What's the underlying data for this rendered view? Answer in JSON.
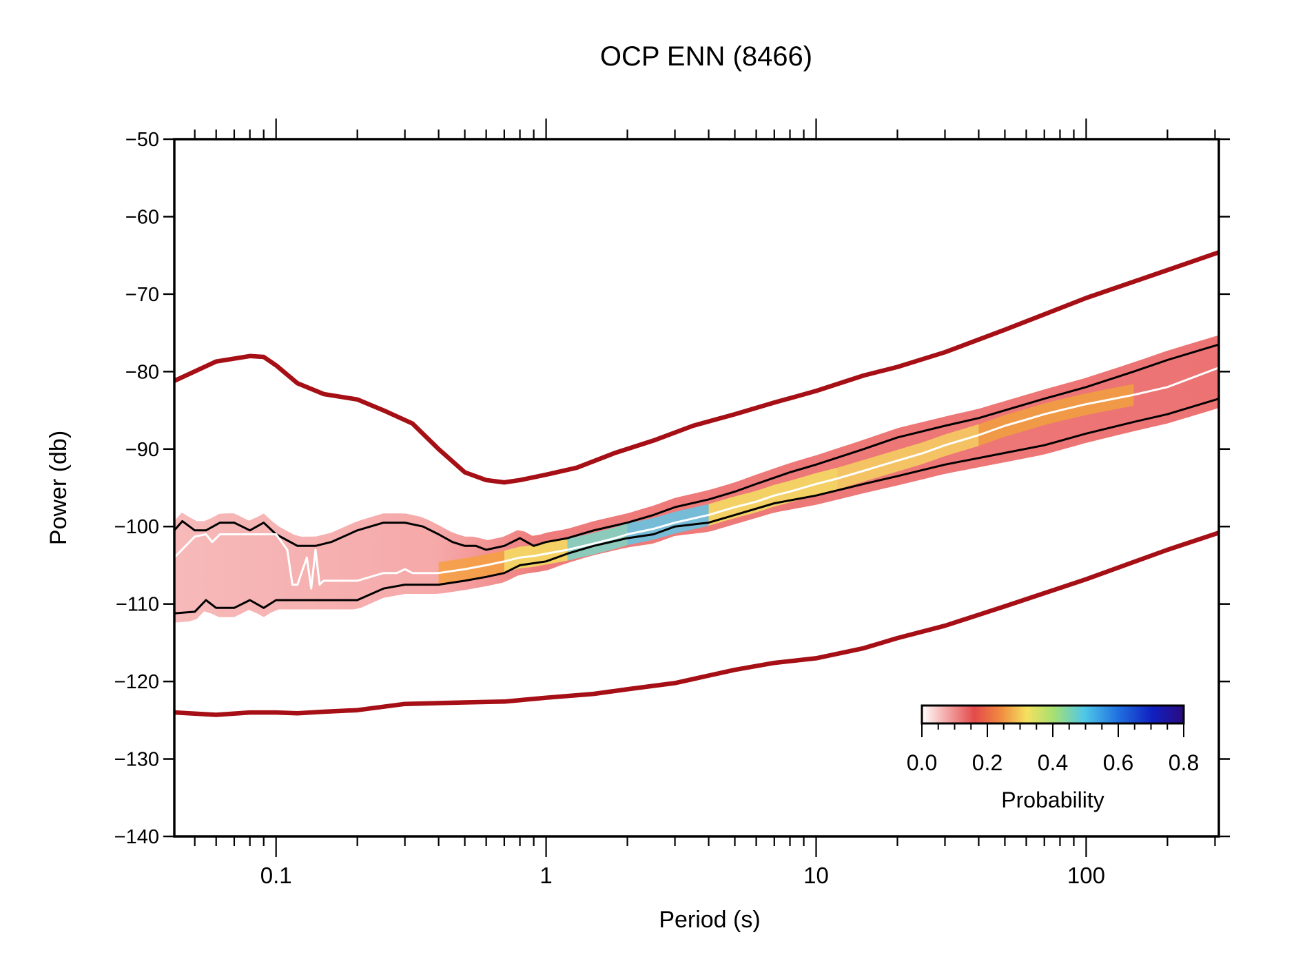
{
  "chart_data": {
    "type": "line",
    "title": "OCP ENN (8466)",
    "xlabel": "Period (s)",
    "ylabel": "Power (db)",
    "xscale": "log",
    "xlim": [
      0.042,
      310
    ],
    "ylim": [
      -140,
      -50
    ],
    "y_ticks": [
      -50,
      -60,
      -70,
      -80,
      -90,
      -100,
      -110,
      -120,
      -130,
      -140
    ],
    "y_tick_labels": [
      "−50",
      "−60",
      "−70",
      "−80",
      "−90",
      "−100",
      "−110",
      "−120",
      "−130",
      "−140"
    ],
    "x_ticks": [
      0.1,
      1,
      10,
      100
    ],
    "x_tick_labels": [
      "0.1",
      "1",
      "10",
      "100"
    ],
    "grid": false,
    "colorbar": {
      "label": "Probability",
      "range": [
        0,
        0.8
      ],
      "ticks": [
        0.0,
        0.2,
        0.4,
        0.6,
        0.8
      ],
      "tick_labels": [
        "0.0",
        "0.2",
        "0.4",
        "0.6",
        "0.8"
      ],
      "placement": "bottom-right",
      "colors": [
        "#ffffff",
        "#f4a0a0",
        "#e34a4a",
        "#f08a40",
        "#f5e060",
        "#a8e070",
        "#50c8e8",
        "#2070e0",
        "#1020c0",
        "#2a0a80"
      ]
    },
    "series": [
      {
        "role": "new-high-noise-model",
        "color": "#a50f15",
        "x": [
          0.042,
          0.06,
          0.08,
          0.09,
          0.1,
          0.12,
          0.15,
          0.2,
          0.25,
          0.32,
          0.4,
          0.5,
          0.6,
          0.7,
          0.8,
          1,
          1.3,
          1.8,
          2.5,
          3.5,
          5,
          7,
          10,
          15,
          20,
          30,
          50,
          100,
          200,
          310
        ],
        "y": [
          -81.2,
          -78.7,
          -78.0,
          -78.1,
          -79.2,
          -81.5,
          -82.9,
          -83.6,
          -85.0,
          -86.7,
          -90.0,
          -93.0,
          -94.0,
          -94.3,
          -94.0,
          -93.3,
          -92.4,
          -90.5,
          -88.9,
          -87.0,
          -85.5,
          -84.0,
          -82.5,
          -80.5,
          -79.4,
          -77.5,
          -74.6,
          -70.5,
          -66.9,
          -64.6
        ]
      },
      {
        "role": "new-low-noise-model",
        "color": "#a50f15",
        "x": [
          0.042,
          0.06,
          0.08,
          0.1,
          0.12,
          0.15,
          0.2,
          0.3,
          0.5,
          0.7,
          1,
          1.5,
          2,
          3,
          5,
          7,
          10,
          15,
          20,
          30,
          50,
          100,
          200,
          310
        ],
        "y": [
          -124.0,
          -124.3,
          -124.0,
          -124.0,
          -124.1,
          -123.9,
          -123.7,
          -122.9,
          -122.7,
          -122.6,
          -122.1,
          -121.6,
          -121.0,
          -120.2,
          -118.5,
          -117.6,
          -117.0,
          -115.7,
          -114.4,
          -112.8,
          -110.3,
          -106.8,
          -103.0,
          -100.8
        ]
      },
      {
        "role": "mode",
        "color": "#ffffff",
        "x": [
          0.042,
          0.05,
          0.055,
          0.058,
          0.062,
          0.07,
          0.08,
          0.1,
          0.11,
          0.115,
          0.12,
          0.13,
          0.135,
          0.14,
          0.145,
          0.15,
          0.16,
          0.2,
          0.25,
          0.28,
          0.3,
          0.32,
          0.35,
          0.4,
          0.5,
          0.6,
          0.7,
          0.8,
          0.9,
          1,
          1.2,
          1.5,
          1.8,
          2,
          2.5,
          3,
          4,
          5,
          6,
          7,
          8,
          10,
          12,
          15,
          20,
          25,
          30,
          40,
          50,
          60,
          70,
          80,
          100,
          150,
          200,
          310
        ],
        "y": [
          -104.0,
          -101.3,
          -101.0,
          -102.0,
          -101.0,
          -101.0,
          -101.0,
          -101.0,
          -103.0,
          -107.5,
          -107.5,
          -104.0,
          -108.0,
          -103.0,
          -107.5,
          -107.0,
          -107.0,
          -107.0,
          -106.0,
          -106.0,
          -105.5,
          -106.0,
          -106.0,
          -106.0,
          -105.5,
          -105.0,
          -104.5,
          -104.0,
          -103.8,
          -103.5,
          -103.0,
          -102.2,
          -101.5,
          -101.0,
          -100.3,
          -99.5,
          -98.5,
          -97.5,
          -96.8,
          -96.0,
          -95.5,
          -94.5,
          -93.8,
          -92.8,
          -91.5,
          -90.5,
          -89.5,
          -88.2,
          -87.0,
          -86.2,
          -85.5,
          -85.0,
          -84.2,
          -83.0,
          -82.0,
          -79.5
        ]
      },
      {
        "role": "upper-percentile",
        "color": "#000000",
        "x": [
          0.042,
          0.045,
          0.05,
          0.055,
          0.062,
          0.07,
          0.08,
          0.09,
          0.1,
          0.12,
          0.14,
          0.16,
          0.2,
          0.25,
          0.3,
          0.35,
          0.4,
          0.45,
          0.5,
          0.55,
          0.6,
          0.7,
          0.8,
          0.9,
          1,
          1.2,
          1.5,
          2,
          2.5,
          3,
          4,
          5,
          6,
          8,
          10,
          15,
          20,
          30,
          40,
          50,
          70,
          100,
          150,
          200,
          310
        ],
        "y": [
          -100.5,
          -99.3,
          -100.5,
          -100.5,
          -99.5,
          -99.5,
          -100.5,
          -99.5,
          -101.0,
          -102.5,
          -102.5,
          -102.0,
          -100.5,
          -99.5,
          -99.5,
          -100.0,
          -101.0,
          -102.0,
          -102.5,
          -102.5,
          -103.0,
          -102.5,
          -101.5,
          -102.5,
          -102.0,
          -101.5,
          -100.5,
          -99.5,
          -98.5,
          -97.5,
          -96.5,
          -95.5,
          -94.5,
          -93.0,
          -92.0,
          -90.0,
          -88.5,
          -87.0,
          -86.0,
          -85.0,
          -83.5,
          -82.0,
          -80.0,
          -78.5,
          -76.5
        ]
      },
      {
        "role": "lower-percentile",
        "color": "#000000",
        "x": [
          0.042,
          0.05,
          0.055,
          0.06,
          0.07,
          0.08,
          0.09,
          0.1,
          0.12,
          0.15,
          0.2,
          0.25,
          0.3,
          0.4,
          0.5,
          0.6,
          0.7,
          0.8,
          1,
          1.2,
          1.5,
          2,
          2.5,
          3,
          4,
          5,
          7,
          10,
          15,
          20,
          30,
          50,
          70,
          100,
          150,
          200,
          310
        ],
        "y": [
          -111.2,
          -111.0,
          -109.5,
          -110.5,
          -110.5,
          -109.5,
          -110.5,
          -109.5,
          -109.5,
          -109.5,
          -109.5,
          -108.0,
          -107.5,
          -107.5,
          -107.0,
          -106.5,
          -106.0,
          -105.0,
          -104.5,
          -103.5,
          -102.5,
          -101.5,
          -101.0,
          -100.0,
          -99.5,
          -98.5,
          -97.0,
          -96.0,
          -94.5,
          -93.5,
          -92.0,
          -90.5,
          -89.5,
          -88.0,
          -86.5,
          -85.5,
          -83.5
        ]
      }
    ]
  }
}
